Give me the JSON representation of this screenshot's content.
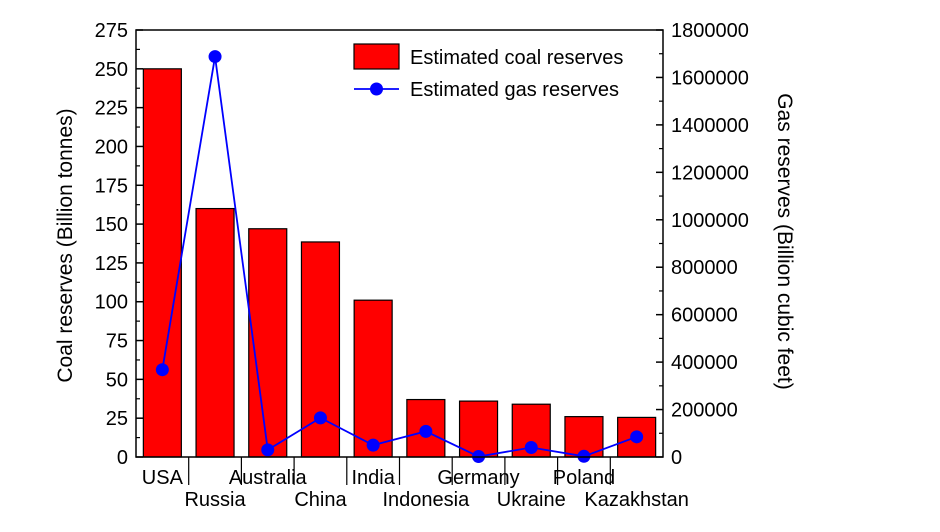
{
  "chart_data": {
    "type": "bar",
    "categories": [
      "USA",
      "Russia",
      "Australia",
      "China",
      "India",
      "Indonesia",
      "Germany",
      "Ukraine",
      "Poland",
      "Kazakhstan"
    ],
    "series": [
      {
        "name": "Estimated coal reserves",
        "kind": "bar",
        "axis": "left",
        "color": "#ff0000",
        "values": [
          250,
          160,
          147,
          138.5,
          101,
          37,
          36,
          34,
          26,
          25.5
        ]
      },
      {
        "name": "Estimated gas reserves",
        "kind": "line",
        "axis": "right",
        "color": "#0000ff",
        "values": [
          368000,
          1688000,
          30000,
          165000,
          50000,
          108000,
          2000,
          40000,
          3000,
          85000
        ]
      }
    ],
    "ylabel": "Coal reserves (Billion tonnes)",
    "y2label": "Gas reserves (Billion cubic feet)",
    "ylim": [
      0,
      275
    ],
    "y2lim": [
      0,
      1800000
    ],
    "yticks": [
      "0",
      "25",
      "50",
      "75",
      "100",
      "125",
      "150",
      "175",
      "200",
      "225",
      "250",
      "275"
    ],
    "y2ticks": [
      "0",
      "200000",
      "400000",
      "600000",
      "800000",
      "1000000",
      "1200000",
      "1400000",
      "1600000",
      "1800000"
    ],
    "grid": false,
    "legend_position": "top-right"
  }
}
